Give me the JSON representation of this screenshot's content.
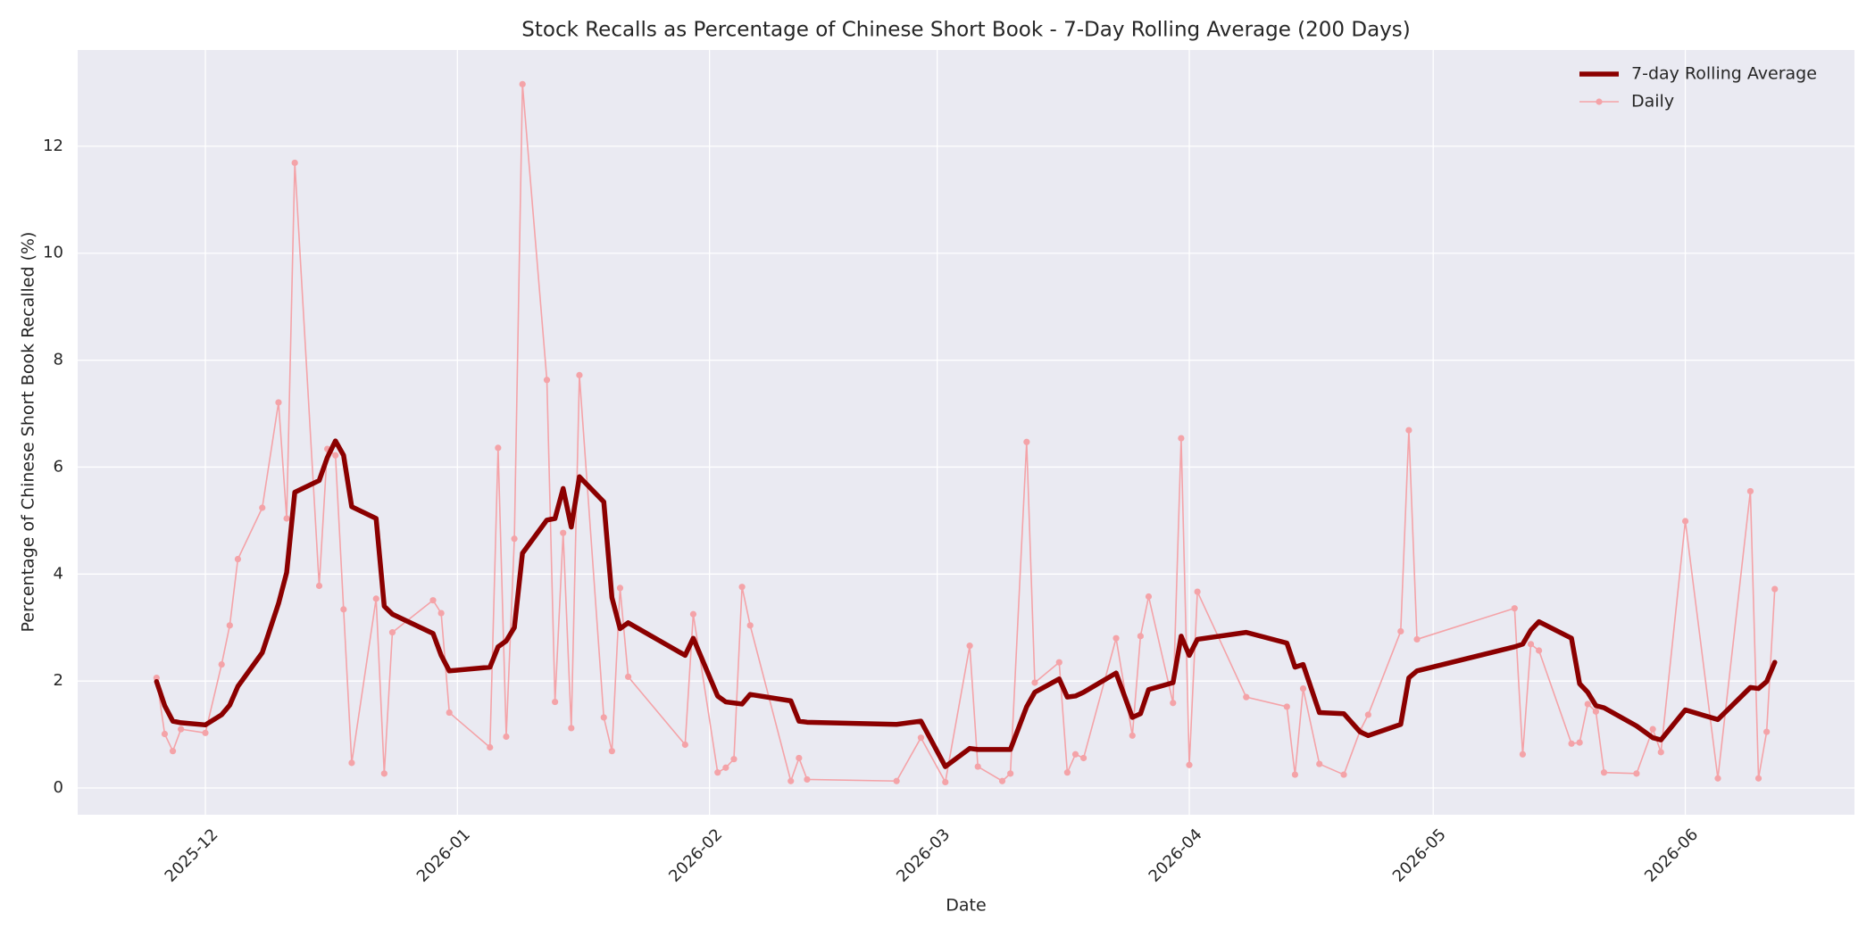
{
  "chart_data": {
    "type": "line",
    "title": "Stock Recalls as Percentage of Chinese Short Book - 7-Day Rolling Average (200 Days)",
    "x_label": "Date",
    "y_label": "Percentage of Chinese Short Book Recalled (%)",
    "x": [
      -6,
      -5,
      -4,
      -3,
      0,
      2,
      3,
      4,
      7,
      9,
      10,
      11,
      14,
      15,
      16,
      17,
      18,
      21,
      22,
      23,
      28,
      29,
      30,
      35,
      36,
      37,
      38,
      39,
      42,
      43,
      44,
      45,
      46,
      49,
      50,
      51,
      52,
      59,
      60,
      63,
      64,
      65,
      66,
      67,
      72,
      73,
      74,
      85,
      88,
      91,
      94,
      95,
      98,
      99,
      101,
      102,
      105,
      106,
      107,
      108,
      112,
      114,
      115,
      116,
      119,
      120,
      121,
      122,
      128,
      133,
      134,
      135,
      137,
      140,
      142,
      143,
      147,
      148,
      149,
      161,
      162,
      163,
      164,
      168,
      169,
      170,
      171,
      172,
      176,
      178,
      179,
      182,
      186,
      190,
      191,
      192,
      193
    ],
    "series": [
      {
        "name": "7-day Rolling Average",
        "color": "#8b0000",
        "line_width": 5.5,
        "markers": false,
        "values": [
          1.99,
          1.54,
          1.25,
          1.22,
          1.18,
          1.37,
          1.55,
          1.9,
          2.53,
          3.45,
          4.03,
          5.53,
          5.75,
          6.18,
          6.49,
          6.22,
          5.26,
          5.04,
          3.4,
          3.25,
          2.89,
          2.48,
          2.19,
          2.26,
          2.64,
          2.75,
          3.0,
          4.39,
          5.01,
          5.04,
          5.6,
          4.88,
          5.82,
          5.35,
          3.56,
          2.98,
          3.09,
          2.48,
          2.8,
          1.72,
          1.61,
          1.59,
          1.57,
          1.75,
          1.63,
          1.25,
          1.23,
          1.19,
          1.25,
          0.4,
          0.74,
          0.72,
          0.72,
          0.72,
          1.52,
          1.79,
          2.04,
          1.7,
          1.72,
          1.79,
          2.15,
          1.32,
          1.39,
          1.84,
          1.97,
          2.84,
          2.48,
          2.78,
          2.91,
          2.71,
          2.26,
          2.31,
          1.41,
          1.39,
          1.05,
          0.98,
          1.19,
          2.06,
          2.19,
          2.64,
          2.69,
          2.95,
          3.11,
          2.8,
          1.95,
          1.79,
          1.54,
          1.5,
          1.16,
          0.94,
          0.9,
          1.46,
          1.28,
          1.88,
          1.86,
          1.99,
          2.35
        ]
      },
      {
        "name": "Daily",
        "color": "#f4a3a8",
        "line_width": 1.6,
        "markers": true,
        "values": [
          2.06,
          1.01,
          0.69,
          1.1,
          1.03,
          2.31,
          3.04,
          4.28,
          5.24,
          7.21,
          5.04,
          11.69,
          3.78,
          6.34,
          6.22,
          3.34,
          0.47,
          3.54,
          0.27,
          2.91,
          3.51,
          3.27,
          1.41,
          0.76,
          6.36,
          0.96,
          4.66,
          13.16,
          7.63,
          1.61,
          4.77,
          1.12,
          7.72,
          1.32,
          0.69,
          3.74,
          2.08,
          0.81,
          3.25,
          0.29,
          0.38,
          0.54,
          3.76,
          3.04,
          0.13,
          0.56,
          0.16,
          0.13,
          0.94,
          0.11,
          2.66,
          0.4,
          0.13,
          0.27,
          6.47,
          1.97,
          2.35,
          0.29,
          0.63,
          0.56,
          2.8,
          0.98,
          2.84,
          3.58,
          1.59,
          6.54,
          0.43,
          3.67,
          1.7,
          1.52,
          0.25,
          1.86,
          0.45,
          0.25,
          1.07,
          1.37,
          2.93,
          6.69,
          2.78,
          3.36,
          0.63,
          2.69,
          2.57,
          0.83,
          0.85,
          1.57,
          1.43,
          0.29,
          0.27,
          1.1,
          0.67,
          4.99,
          0.18,
          5.55,
          0.18,
          1.05,
          3.72
        ]
      }
    ],
    "xlim": [
      -15.7,
      202.8
    ],
    "ylim": [
      -0.5,
      13.8
    ],
    "xticks": [
      {
        "value": 0,
        "label": "2025-12"
      },
      {
        "value": 31,
        "label": "2026-01"
      },
      {
        "value": 62,
        "label": "2026-02"
      },
      {
        "value": 90,
        "label": "2026-03"
      },
      {
        "value": 121,
        "label": "2026-04"
      },
      {
        "value": 151,
        "label": "2026-05"
      },
      {
        "value": 182,
        "label": "2026-06"
      }
    ],
    "yticks": [
      0,
      2,
      4,
      6,
      8,
      10,
      12
    ],
    "grid": true,
    "legend": "upper right"
  }
}
